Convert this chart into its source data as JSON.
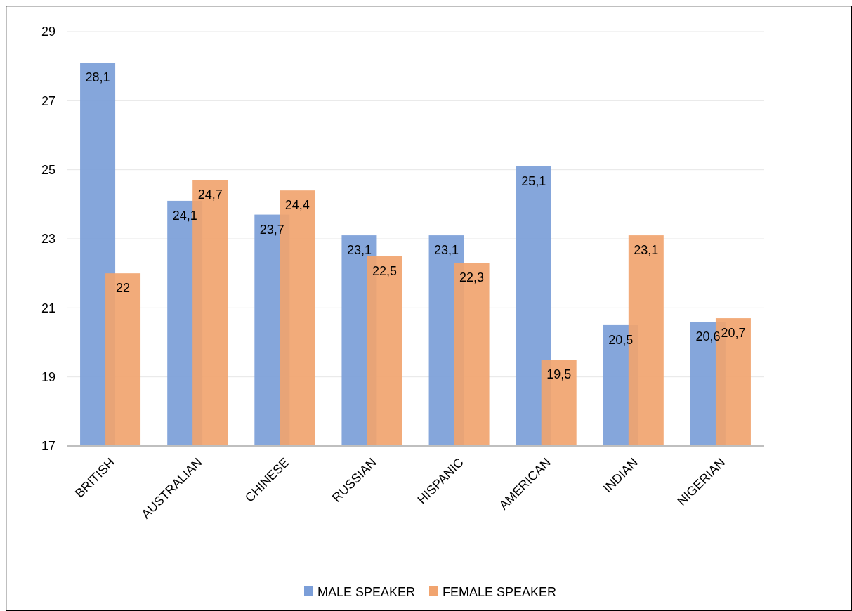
{
  "chart_data": {
    "type": "bar",
    "categories": [
      "BRITISH",
      "AUSTRALIAN",
      "CHINESE",
      "RUSSIAN",
      "HISPANIC",
      "AMERICAN",
      "INDIAN",
      "NIGERIAN"
    ],
    "series": [
      {
        "name": "MALE SPEAKER",
        "color": "#7b9ed8",
        "values": [
          28.1,
          24.1,
          23.7,
          23.1,
          23.1,
          25.1,
          20.5,
          20.6
        ],
        "value_labels": [
          "28,1",
          "24,1",
          "23,7",
          "23,1",
          "23,1",
          "25,1",
          "20,5",
          "20,6"
        ]
      },
      {
        "name": "FEMALE SPEAKER",
        "color": "#f1a46f",
        "values": [
          22,
          24.7,
          24.4,
          22.5,
          22.3,
          19.5,
          23.1,
          20.7
        ],
        "value_labels": [
          "22",
          "24,7",
          "24,4",
          "22,5",
          "22,3",
          "19,5",
          "23,1",
          "20,7"
        ]
      }
    ],
    "ylim": [
      17,
      29
    ],
    "yticks": [
      17,
      19,
      21,
      23,
      25,
      27,
      29
    ],
    "grid": "y",
    "legend": "bottom"
  }
}
